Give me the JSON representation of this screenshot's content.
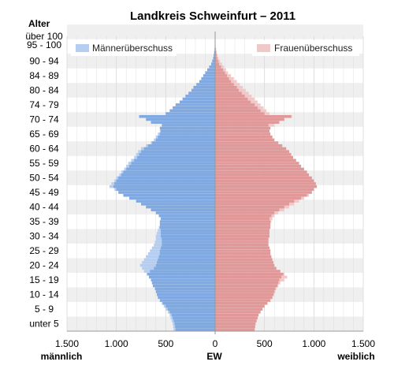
{
  "chart_data": {
    "type": "bar",
    "orientation": "horizontal",
    "title": "Landkreis Schweinfurt – 2011",
    "y_axis_title": "Alter",
    "x_axis_center_label": "EW",
    "x_axis_left_label": "männlich",
    "x_axis_right_label": "weiblich",
    "x_tick_labels": [
      "1.500",
      "1.000",
      "500",
      "0",
      "500",
      "1.000",
      "1.500"
    ],
    "x_tick_values": [
      -1500,
      -1000,
      -500,
      0,
      500,
      1000,
      1500
    ],
    "xlim": [
      -1500,
      1500
    ],
    "age_group_labels": [
      "unter 5",
      "5 - 9",
      "10 - 14",
      "15 - 19",
      "20 - 24",
      "25 - 29",
      "30 - 34",
      "35 - 39",
      "40 - 44",
      "45 - 49",
      "50 - 54",
      "55 - 59",
      "60 - 64",
      "65 - 69",
      "70 - 74",
      "74 - 79",
      "80 - 84",
      "84 - 89",
      "90 - 94",
      "95 - 100",
      "über 100"
    ],
    "legend": {
      "male_surplus": "Männerüberschuss",
      "female_surplus": "Frauenüberschuss"
    },
    "ages": "0 to 100 single years (101 bars, youngest at bottom)",
    "male": [
      420,
      425,
      430,
      440,
      450,
      460,
      480,
      500,
      520,
      540,
      560,
      580,
      590,
      600,
      610,
      630,
      640,
      650,
      670,
      690,
      720,
      740,
      760,
      740,
      720,
      700,
      680,
      660,
      640,
      620,
      610,
      600,
      600,
      590,
      580,
      570,
      560,
      560,
      550,
      570,
      600,
      650,
      700,
      750,
      800,
      870,
      930,
      980,
      1020,
      1070,
      1050,
      1020,
      1000,
      970,
      950,
      920,
      900,
      880,
      850,
      820,
      800,
      780,
      750,
      700,
      650,
      620,
      600,
      580,
      560,
      560,
      540,
      650,
      700,
      770,
      500,
      460,
      430,
      400,
      360,
      330,
      300,
      270,
      240,
      220,
      190,
      160,
      140,
      120,
      100,
      80,
      60,
      40,
      30,
      20,
      15,
      10,
      6,
      4,
      2,
      1,
      1
    ],
    "female": [
      400,
      405,
      410,
      420,
      430,
      440,
      460,
      480,
      500,
      530,
      560,
      580,
      600,
      610,
      620,
      640,
      660,
      700,
      730,
      700,
      660,
      620,
      600,
      590,
      580,
      570,
      560,
      560,
      550,
      540,
      540,
      540,
      550,
      550,
      550,
      560,
      560,
      570,
      580,
      600,
      640,
      700,
      750,
      800,
      850,
      900,
      950,
      980,
      1000,
      1030,
      1020,
      1000,
      980,
      950,
      930,
      900,
      870,
      850,
      820,
      790,
      770,
      750,
      720,
      680,
      640,
      600,
      580,
      560,
      550,
      560,
      600,
      650,
      700,
      780,
      550,
      520,
      490,
      460,
      430,
      400,
      370,
      340,
      310,
      280,
      250,
      220,
      190,
      160,
      130,
      110,
      90,
      70,
      50,
      35,
      25,
      15,
      10,
      6,
      3,
      2,
      1
    ]
  },
  "colors": {
    "male_bar": "#7fa9e0",
    "male_surplus": "#b4cdf0",
    "female_bar": "#e09898",
    "female_surplus": "#f0c8c8",
    "band": "#efefef",
    "grid": "#d8d8d8",
    "axis": "#999999"
  }
}
